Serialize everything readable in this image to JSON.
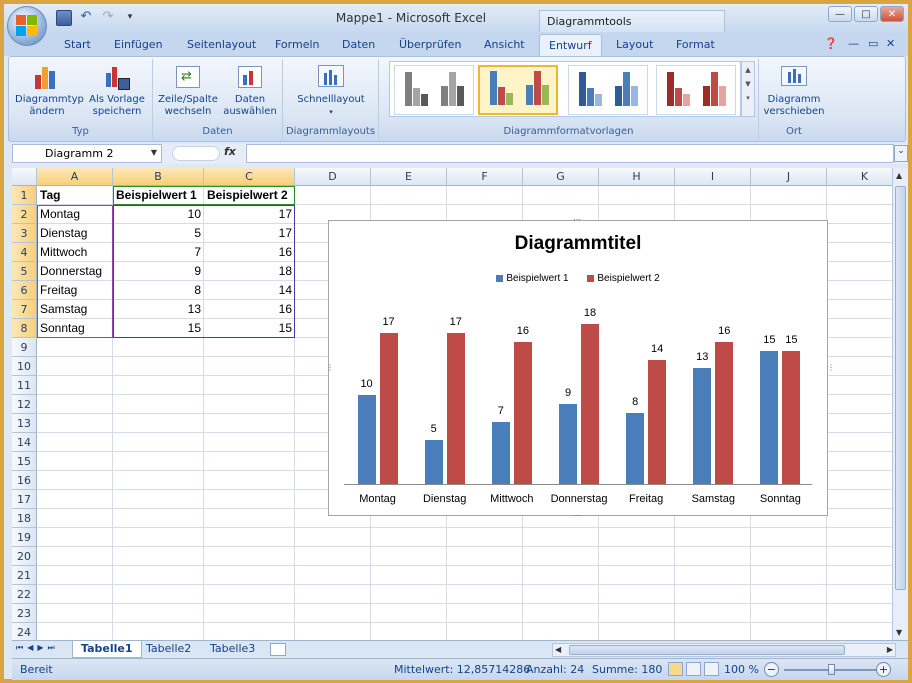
{
  "app": {
    "window_title": "Mappe1 - Microsoft Excel",
    "context_tools": "Diagrammtools"
  },
  "tabs": [
    "Start",
    "Einfügen",
    "Seitenlayout",
    "Formeln",
    "Daten",
    "Überprüfen",
    "Ansicht",
    "Entwurf",
    "Layout",
    "Format"
  ],
  "active_tab": "Entwurf",
  "ribbon": {
    "typ": {
      "label": "Typ",
      "change_type": "Diagrammtyp\nändern",
      "save_template": "Als Vorlage\nspeichern"
    },
    "daten": {
      "label": "Daten",
      "switch": "Zeile/Spalte\nwechseln",
      "select": "Daten\nauswählen"
    },
    "layouts": {
      "label": "Diagrammlayouts",
      "quick": "Schnelllayout"
    },
    "styles": {
      "label": "Diagrammformatvorlagen"
    },
    "ort": {
      "label": "Ort",
      "move": "Diagramm\nverschieben"
    }
  },
  "formula_bar": {
    "name_box": "Diagramm 2",
    "fx": "fx"
  },
  "columns": [
    "A",
    "B",
    "C",
    "D",
    "E",
    "F",
    "G",
    "H",
    "I",
    "J",
    "K"
  ],
  "rows": [
    "1",
    "2",
    "3",
    "4",
    "5",
    "6",
    "7",
    "8",
    "9",
    "10",
    "11",
    "12",
    "13",
    "14",
    "15",
    "16",
    "17",
    "18",
    "19",
    "20",
    "21",
    "22",
    "23",
    "24"
  ],
  "sheet": {
    "headers": [
      "Tag",
      "Beispielwert 1",
      "Beispielwert 2"
    ],
    "data": [
      [
        "Montag",
        "10",
        "17"
      ],
      [
        "Dienstag",
        "5",
        "17"
      ],
      [
        "Mittwoch",
        "7",
        "16"
      ],
      [
        "Donnerstag",
        "9",
        "18"
      ],
      [
        "Freitag",
        "8",
        "14"
      ],
      [
        "Samstag",
        "13",
        "16"
      ],
      [
        "Sonntag",
        "15",
        "15"
      ]
    ]
  },
  "chart_data": {
    "type": "bar",
    "title": "Diagrammtitel",
    "categories": [
      "Montag",
      "Dienstag",
      "Mittwoch",
      "Donnerstag",
      "Freitag",
      "Samstag",
      "Sonntag"
    ],
    "series": [
      {
        "name": "Beispielwert 1",
        "values": [
          10,
          5,
          7,
          9,
          8,
          13,
          15
        ],
        "color": "#4a7ebb"
      },
      {
        "name": "Beispielwert 2",
        "values": [
          17,
          17,
          16,
          18,
          14,
          16,
          15
        ],
        "color": "#be4b48"
      }
    ],
    "ylim": [
      0,
      18
    ],
    "data_labels": true,
    "legend_position": "top",
    "grid": false
  },
  "sheet_tabs": [
    "Tabelle1",
    "Tabelle2",
    "Tabelle3"
  ],
  "active_sheet": "Tabelle1",
  "status": {
    "mode": "Bereit",
    "average": "Mittelwert: 12,85714286",
    "count": "Anzahl: 24",
    "sum": "Summe: 180",
    "zoom": "100 %"
  }
}
